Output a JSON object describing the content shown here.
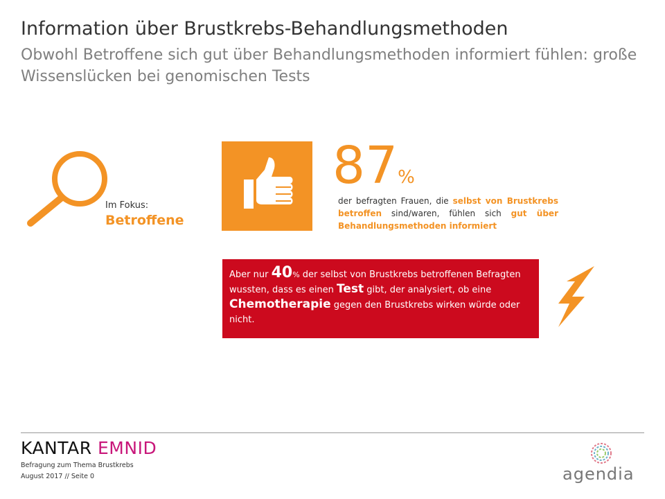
{
  "header": {
    "title": "Information über Brustkrebs-Behandlungsmethoden",
    "subtitle": "Obwohl Betroffene sich gut über Behandlungsmethoden informiert fühlen: große Wissenslücken bei genomischen Tests"
  },
  "focus": {
    "label": "Im Fokus:",
    "group": "Betroffene"
  },
  "stat": {
    "value": 87,
    "unit": "%",
    "text": [
      "der befragten Frauen, die ",
      "selbst von Brustkrebs betroffen",
      " sind/waren, fühlen sich ",
      "gut über Behandlungsmethoden informiert"
    ]
  },
  "alert": {
    "parts": [
      "Aber nur ",
      "40",
      "%",
      " der selbst von Brustkrebs betroffenen Befragten wussten, dass es einen ",
      "Test",
      " gibt, der analysiert, ob eine ",
      "Chemotherapie",
      " gegen den Brustkrebs wirken würde oder nicht."
    ]
  },
  "footer": {
    "brand": [
      "KANTAR",
      "EMNID"
    ],
    "survey": "Befragung zum Thema Brustkrebs",
    "page": "August 2017 // Seite 0",
    "partner": "agendia"
  }
}
